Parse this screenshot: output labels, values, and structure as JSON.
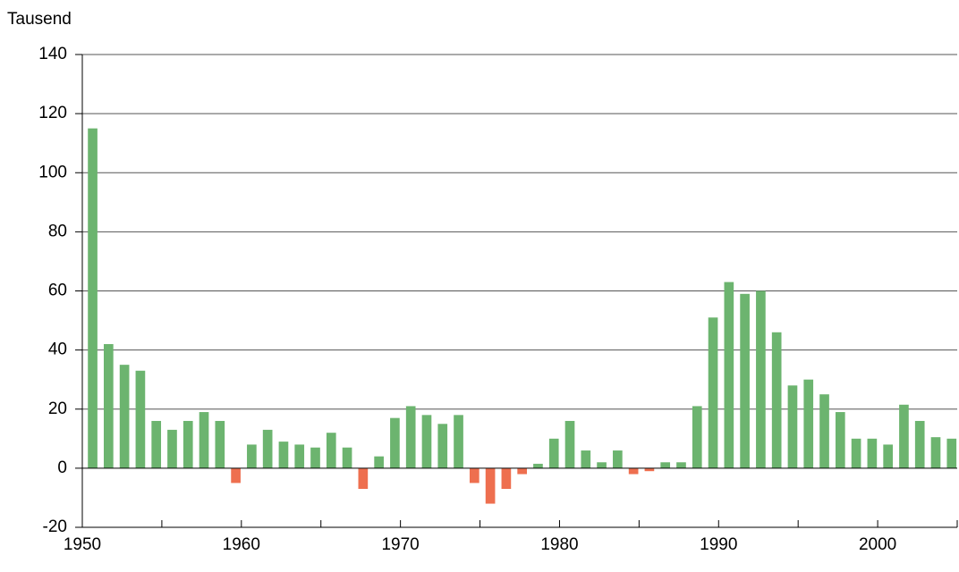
{
  "chart_data": {
    "type": "bar",
    "y_label": "Tausend",
    "x": [
      1950,
      1951,
      1952,
      1953,
      1954,
      1955,
      1956,
      1957,
      1958,
      1959,
      1960,
      1961,
      1962,
      1963,
      1964,
      1965,
      1966,
      1967,
      1968,
      1969,
      1970,
      1971,
      1972,
      1973,
      1974,
      1975,
      1976,
      1977,
      1978,
      1979,
      1980,
      1981,
      1982,
      1983,
      1984,
      1985,
      1986,
      1987,
      1988,
      1989,
      1990,
      1991,
      1992,
      1993,
      1994,
      1995,
      1996,
      1997,
      1998,
      1999,
      2000,
      2001,
      2002,
      2003,
      2004
    ],
    "values": [
      115,
      42,
      35,
      33,
      16,
      13,
      16,
      19,
      16,
      -5,
      8,
      13,
      9,
      8,
      7,
      12,
      7,
      -7,
      4,
      17,
      21,
      18,
      15,
      18,
      -5,
      -12,
      -7,
      -2,
      1.5,
      10,
      16,
      6,
      2,
      6,
      -2,
      -1,
      2,
      2,
      21,
      51,
      63,
      59,
      60,
      46,
      28,
      30,
      25,
      19,
      10,
      10,
      8,
      21.5,
      16,
      10.5,
      10
    ],
    "color": "#6cb46f",
    "negative_color": "#ee6f4f",
    "xlim": [
      1950,
      2005
    ],
    "xticks": [
      1950,
      1960,
      1970,
      1980,
      1990,
      2000
    ],
    "xminor_ticks": [
      1955,
      1965,
      1975,
      1985,
      1995,
      2005
    ],
    "ylim": [
      -20,
      140
    ],
    "yticks": [
      -20,
      0,
      20,
      40,
      60,
      80,
      100,
      120,
      140
    ],
    "grid": true
  }
}
